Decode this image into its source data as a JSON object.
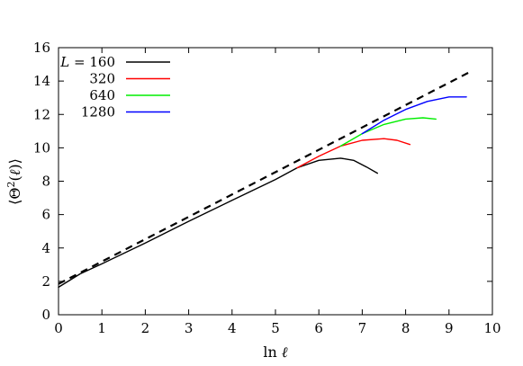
{
  "chart_data": {
    "type": "line",
    "title": "",
    "xlabel": {
      "prefix": "ln ",
      "var": "ℓ"
    },
    "ylabel": {
      "text": "⟨Θ",
      "sup": "2",
      "var": "ℓ",
      "close": ")⟩"
    },
    "xlim": [
      0,
      10
    ],
    "ylim": [
      0,
      16
    ],
    "xticks": [
      0,
      1,
      2,
      3,
      4,
      5,
      6,
      7,
      8,
      9,
      10
    ],
    "yticks": [
      0,
      2,
      4,
      6,
      8,
      10,
      12,
      14,
      16
    ],
    "grid": false,
    "legend_position": "top-left",
    "legend_title_prefix": "L = ",
    "series": [
      {
        "name": "160",
        "color": "#000000",
        "x": [
          0,
          0.5,
          1,
          2,
          3,
          4,
          5,
          5.5,
          6.0,
          6.5,
          6.8,
          7.1,
          7.35
        ],
        "y": [
          1.65,
          2.45,
          3.05,
          4.3,
          5.6,
          6.85,
          8.1,
          8.8,
          9.25,
          9.38,
          9.25,
          8.85,
          8.48
        ]
      },
      {
        "name": "320",
        "color": "#ff0000",
        "x": [
          5.5,
          6.0,
          6.5,
          7.0,
          7.5,
          7.8,
          8.1
        ],
        "y": [
          8.8,
          9.5,
          10.1,
          10.45,
          10.55,
          10.45,
          10.2
        ]
      },
      {
        "name": "640",
        "color": "#00ee00",
        "x": [
          6.5,
          7.0,
          7.5,
          8.0,
          8.4,
          8.7
        ],
        "y": [
          10.1,
          10.85,
          11.4,
          11.72,
          11.8,
          11.72
        ]
      },
      {
        "name": "1280",
        "color": "#0000ff",
        "x": [
          7.0,
          7.5,
          8.0,
          8.5,
          9.0,
          9.4
        ],
        "y": [
          10.85,
          11.65,
          12.3,
          12.78,
          13.05,
          13.05
        ]
      },
      {
        "name": "",
        "color": "#000000",
        "dashed": true,
        "x": [
          0,
          9.45
        ],
        "y": [
          1.85,
          14.5
        ]
      }
    ]
  }
}
